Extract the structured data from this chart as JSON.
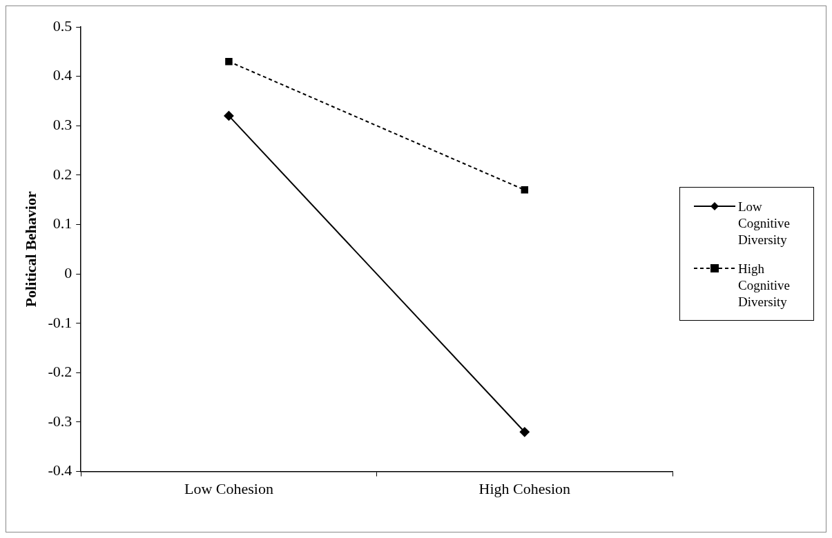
{
  "chart_data": {
    "type": "line",
    "ylabel": "Political Behavior",
    "categories": [
      "Low Cohesion",
      "High Cohesion"
    ],
    "series": [
      {
        "name": "Low Cognitive Diversity",
        "color": "#000000",
        "values": [
          0.32,
          -0.32
        ],
        "marker": "diamond",
        "line_style": "solid"
      },
      {
        "name": "High Cognitive Diversity",
        "color": "#000000",
        "values": [
          0.43,
          0.17
        ],
        "marker": "square",
        "line_style": "dashed"
      }
    ],
    "ylim": [
      -0.4,
      0.5
    ],
    "yticks": [
      -0.4,
      -0.3,
      -0.2,
      -0.1,
      0,
      0.1,
      0.2,
      0.3,
      0.4,
      0.5
    ],
    "grid": false,
    "legend": "right"
  }
}
